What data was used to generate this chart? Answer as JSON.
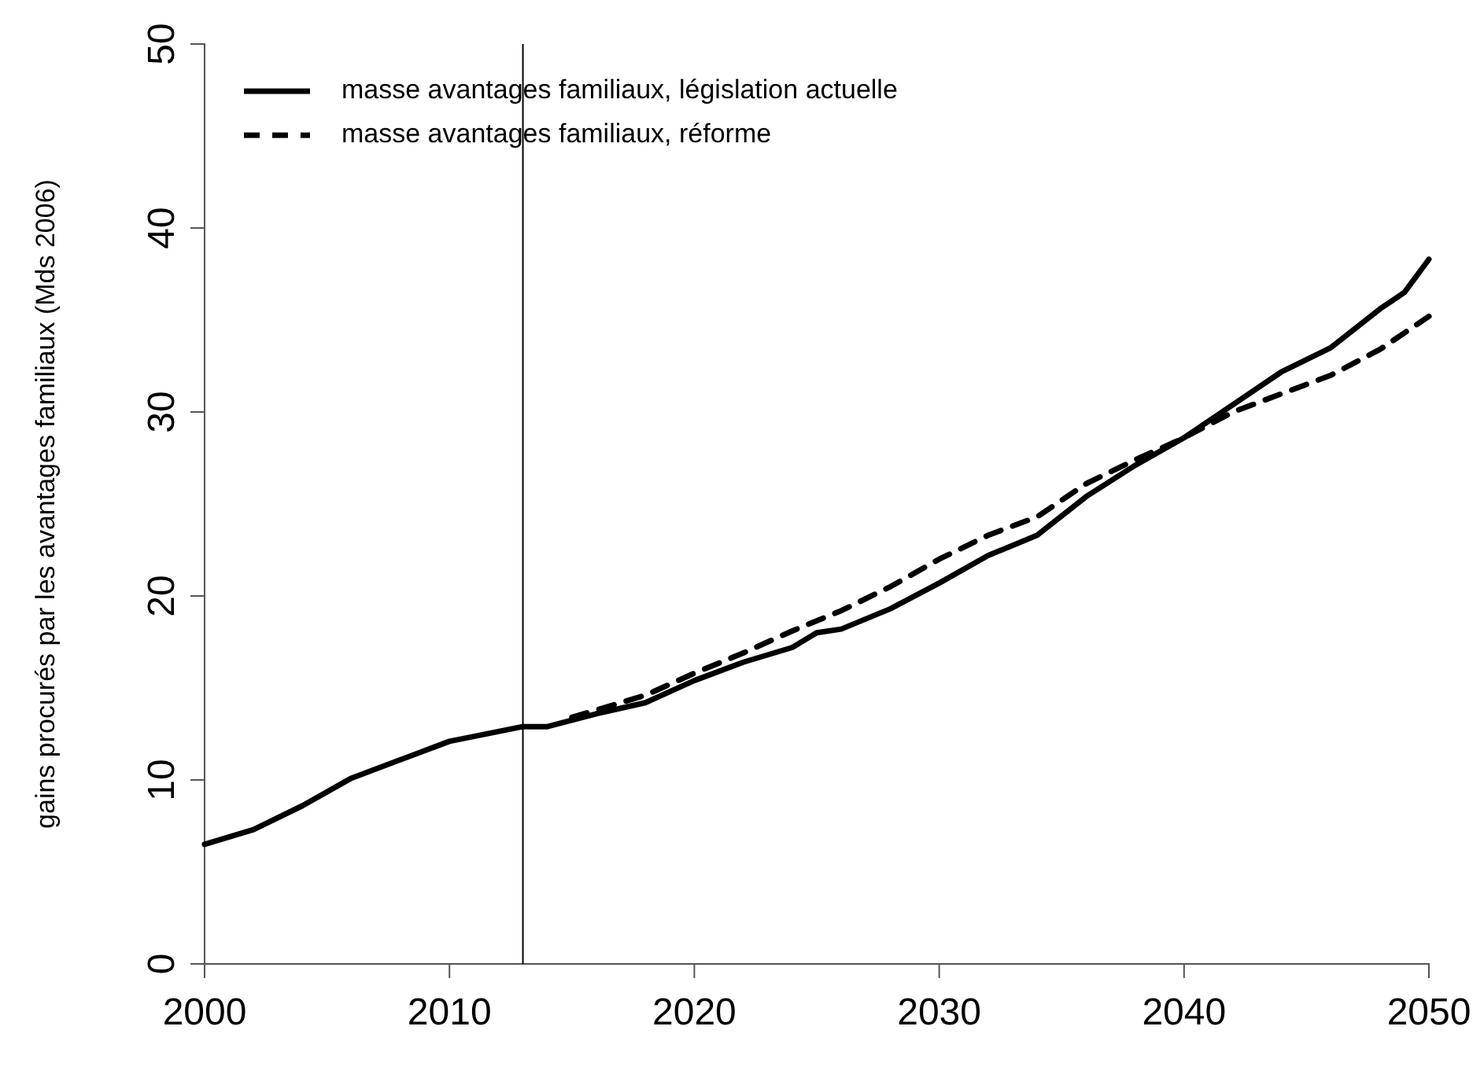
{
  "chart_data": {
    "type": "line",
    "ylabel": "gains procurés par les avantages familiaux (Mds 2006)",
    "xlim": [
      2000,
      2050
    ],
    "xticks": [
      2000,
      2010,
      2020,
      2030,
      2040,
      2050
    ],
    "ylim": [
      0,
      50
    ],
    "yticks": [
      0,
      10,
      20,
      30,
      40,
      50
    ],
    "legend": "top left",
    "grid": false,
    "series": [
      {
        "name": "masse avantages familiaux, législation actuelle",
        "color": "#000000",
        "line_style": "solid",
        "x": [
          2000,
          2002,
          2004,
          2006,
          2008,
          2010,
          2013,
          2014,
          2016,
          2018,
          2020,
          2022,
          2024,
          2025,
          2026,
          2028,
          2030,
          2032,
          2034,
          2036,
          2038,
          2040,
          2042,
          2044,
          2046,
          2048,
          2049,
          2050
        ],
        "values": [
          6.5,
          7.3,
          8.6,
          10.1,
          11.1,
          12.1,
          12.9,
          12.9,
          13.6,
          14.2,
          15.4,
          16.4,
          17.2,
          18.0,
          18.2,
          19.3,
          20.7,
          22.2,
          23.3,
          25.4,
          27.1,
          28.6,
          30.4,
          32.2,
          33.5,
          35.6,
          36.5,
          38.3
        ]
      },
      {
        "name": "masse avantages familiaux, réforme",
        "color": "#000000",
        "line_style": "dashed",
        "x": [
          2015,
          2018,
          2020,
          2022,
          2024,
          2026,
          2028,
          2030,
          2032,
          2034,
          2036,
          2038,
          2040,
          2042,
          2044,
          2046,
          2048,
          2050
        ],
        "values": [
          13.4,
          14.6,
          15.8,
          16.9,
          18.1,
          19.2,
          20.5,
          22.0,
          23.3,
          24.3,
          26.1,
          27.4,
          28.6,
          30.0,
          31.0,
          32.0,
          33.4,
          35.2
        ]
      }
    ],
    "ref_lines": [
      {
        "axis": "x",
        "value": 2013,
        "color": "#000000"
      }
    ]
  }
}
